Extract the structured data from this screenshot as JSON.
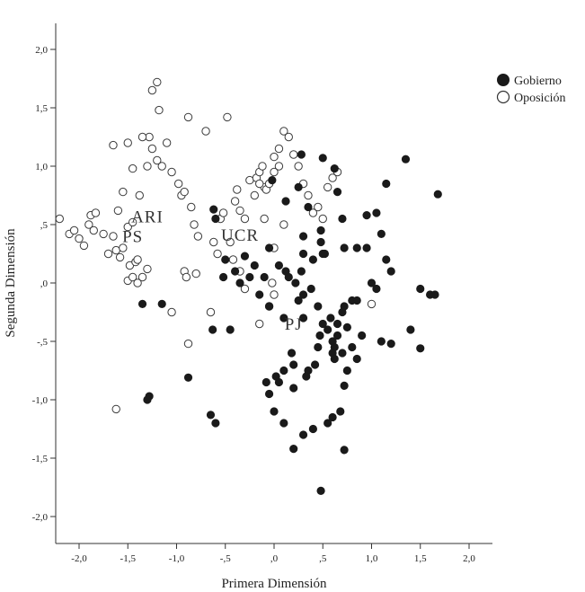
{
  "chart_data": {
    "type": "scatter",
    "xlabel": "Primera Dimensión",
    "ylabel": "Segunda Dimensión",
    "xlim": [
      -2.2,
      2.25
    ],
    "ylim": [
      -2.2,
      2.25
    ],
    "x_ticks": [
      {
        "value": -2.0,
        "label": "-2,0"
      },
      {
        "value": -1.5,
        "label": "-1,5"
      },
      {
        "value": -1.0,
        "label": "-1,0"
      },
      {
        "value": -0.5,
        "label": "-,5"
      },
      {
        "value": 0.0,
        "label": ",0"
      },
      {
        "value": 0.5,
        "label": ",5"
      },
      {
        "value": 1.0,
        "label": "1,0"
      },
      {
        "value": 1.5,
        "label": "1,5"
      },
      {
        "value": 2.0,
        "label": "2,0"
      }
    ],
    "y_ticks": [
      {
        "value": 2.0,
        "label": "2,0"
      },
      {
        "value": 1.5,
        "label": "1,5"
      },
      {
        "value": 1.0,
        "label": "1,0"
      },
      {
        "value": 0.5,
        "label": ",5"
      },
      {
        "value": 0.0,
        "label": ",0"
      },
      {
        "value": -0.5,
        "label": "-,5"
      },
      {
        "value": -1.0,
        "label": "-1,0"
      },
      {
        "value": -1.5,
        "label": "-1,5"
      },
      {
        "value": -2.0,
        "label": "-2,0"
      }
    ],
    "grid": false,
    "legend": {
      "position": "right",
      "entries": [
        {
          "name": "Gobierno",
          "marker": "filled-circle",
          "color": "#1a1a1a"
        },
        {
          "name": "Oposición",
          "marker": "open-circle",
          "color": "#333333"
        }
      ]
    },
    "annotations": [
      {
        "text": "ARI",
        "x": -1.3,
        "y": 0.52
      },
      {
        "text": "PS",
        "x": -1.45,
        "y": 0.35
      },
      {
        "text": "UCR",
        "x": -0.35,
        "y": 0.36
      },
      {
        "text": "PJ",
        "x": 0.2,
        "y": -0.4
      }
    ],
    "series": [
      {
        "name": "Gobierno",
        "marker": "filled",
        "x": [
          -1.35,
          -1.15,
          -1.28,
          -1.3,
          -0.88,
          -0.65,
          -0.6,
          -0.52,
          -0.45,
          -0.62,
          -0.63,
          -0.6,
          -0.5,
          -0.3,
          -0.2,
          -0.05,
          -0.1,
          -0.02,
          0.12,
          0.25,
          0.28,
          0.35,
          0.48,
          0.5,
          0.62,
          0.65,
          0.7,
          0.72,
          0.95,
          1.05,
          1.15,
          1.35,
          1.68,
          1.1,
          0.85,
          0.95,
          1.2,
          1.0,
          1.15,
          1.05,
          1.6,
          1.5,
          1.65,
          1.4,
          1.1,
          1.2,
          1.5,
          0.9,
          0.8,
          0.85,
          0.75,
          0.72,
          0.68,
          0.6,
          0.55,
          0.4,
          0.3,
          0.2,
          0.1,
          0.0,
          -0.05,
          0.05,
          0.2,
          0.35,
          0.45,
          0.47,
          0.65,
          0.7,
          0.72,
          0.8,
          0.85,
          -0.15,
          -0.25,
          -0.4,
          -0.35,
          -0.05,
          0.1,
          0.3,
          0.5,
          0.55,
          0.6,
          0.65,
          0.62,
          0.7,
          0.75,
          0.58,
          0.45,
          0.3,
          0.22,
          0.12,
          0.05,
          0.15,
          0.28,
          0.4,
          0.52,
          0.38,
          0.25,
          0.18,
          0.42,
          0.33,
          0.2,
          0.1,
          0.02,
          -0.08,
          0.48,
          0.5,
          0.3,
          0.48,
          0.72,
          0.3,
          0.6,
          0.62
        ],
        "y": [
          -0.18,
          -0.18,
          -0.97,
          -1.0,
          -0.81,
          -1.13,
          -1.2,
          0.05,
          -0.4,
          0.63,
          -0.4,
          0.55,
          0.2,
          0.23,
          0.15,
          0.3,
          0.05,
          0.88,
          0.7,
          0.82,
          1.1,
          0.65,
          0.45,
          1.07,
          0.98,
          0.78,
          0.55,
          0.3,
          0.58,
          0.6,
          0.85,
          1.06,
          0.76,
          0.42,
          0.3,
          0.3,
          0.1,
          0.0,
          0.2,
          -0.05,
          -0.1,
          -0.05,
          -0.1,
          -0.4,
          -0.5,
          -0.52,
          -0.56,
          -0.45,
          -0.55,
          -0.65,
          -0.75,
          -0.88,
          -1.1,
          -1.15,
          -1.2,
          -1.25,
          -1.3,
          -1.42,
          -1.2,
          -1.1,
          -0.95,
          -0.85,
          -0.9,
          -0.75,
          -0.55,
          -0.45,
          -0.35,
          -0.25,
          -0.2,
          -0.15,
          -0.15,
          -0.1,
          0.05,
          0.1,
          0.0,
          -0.2,
          -0.3,
          -0.3,
          -0.35,
          -0.4,
          -0.5,
          -0.45,
          -0.55,
          -0.6,
          -0.38,
          -0.3,
          -0.2,
          -0.1,
          0.0,
          0.1,
          0.15,
          0.05,
          0.1,
          0.2,
          0.25,
          -0.05,
          -0.15,
          -0.6,
          -0.7,
          -0.8,
          -0.7,
          -0.75,
          -0.8,
          -0.85,
          0.35,
          0.25,
          0.4,
          -1.78,
          -1.43,
          0.25,
          -0.6,
          -0.65
        ]
      },
      {
        "name": "Oposición",
        "marker": "open",
        "x": [
          -2.2,
          -2.1,
          -2.05,
          -2.0,
          -1.95,
          -1.9,
          -1.88,
          -1.85,
          -1.83,
          -1.75,
          -1.7,
          -1.65,
          -1.62,
          -1.58,
          -1.55,
          -1.5,
          -1.48,
          -1.45,
          -1.42,
          -1.4,
          -1.35,
          -1.3,
          -1.28,
          -1.25,
          -1.2,
          -1.18,
          -1.15,
          -1.1,
          -1.05,
          -0.98,
          -0.95,
          -0.92,
          -0.88,
          -0.85,
          -0.82,
          -0.78,
          -0.7,
          -0.62,
          -0.55,
          -0.52,
          -0.48,
          -0.45,
          -0.42,
          -0.4,
          -0.38,
          -0.35,
          -0.3,
          -0.25,
          -0.2,
          -0.18,
          -0.15,
          -0.12,
          -0.1,
          -0.08,
          -0.05,
          0.0,
          0.05,
          0.1,
          0.15,
          0.2,
          0.25,
          0.3,
          0.35,
          0.4,
          0.45,
          0.5,
          0.55,
          0.6,
          0.65,
          -1.65,
          -1.5,
          -1.45,
          -1.35,
          -1.25,
          -1.2,
          -1.38,
          -1.55,
          -1.6,
          -1.5,
          -1.45,
          -1.4,
          -1.3,
          -0.92,
          -1.05,
          -0.65,
          -0.88,
          -1.62,
          -0.9,
          0.05,
          0.0,
          -0.02,
          0.0,
          -0.05,
          -0.15,
          -0.3,
          -0.35,
          0.0,
          0.1,
          -0.1,
          -0.15,
          1.0,
          -0.8,
          -0.58
        ],
        "y": [
          0.55,
          0.42,
          0.45,
          0.38,
          0.32,
          0.5,
          0.58,
          0.45,
          0.6,
          0.42,
          0.25,
          0.4,
          0.28,
          0.22,
          0.3,
          0.48,
          0.15,
          0.52,
          0.18,
          0.2,
          0.05,
          1.0,
          1.25,
          1.65,
          1.72,
          1.48,
          1.0,
          1.2,
          0.95,
          0.85,
          0.75,
          0.78,
          1.42,
          0.65,
          0.5,
          0.4,
          1.3,
          0.35,
          0.55,
          0.6,
          1.42,
          0.35,
          0.2,
          0.7,
          0.8,
          0.62,
          0.55,
          0.88,
          0.75,
          0.9,
          0.95,
          1.0,
          0.82,
          0.8,
          0.85,
          0.95,
          1.0,
          1.3,
          1.25,
          1.1,
          1.0,
          0.85,
          0.75,
          0.6,
          0.65,
          0.55,
          0.82,
          0.9,
          0.95,
          1.18,
          1.2,
          0.98,
          1.25,
          1.15,
          1.05,
          0.75,
          0.78,
          0.62,
          0.02,
          0.05,
          0.0,
          0.12,
          0.1,
          -0.25,
          -0.25,
          -0.52,
          -1.08,
          0.05,
          1.15,
          1.08,
          0.0,
          -0.1,
          -0.2,
          -0.35,
          -0.05,
          0.1,
          0.3,
          0.5,
          0.55,
          0.85,
          -0.18,
          0.08,
          0.25
        ]
      }
    ]
  }
}
